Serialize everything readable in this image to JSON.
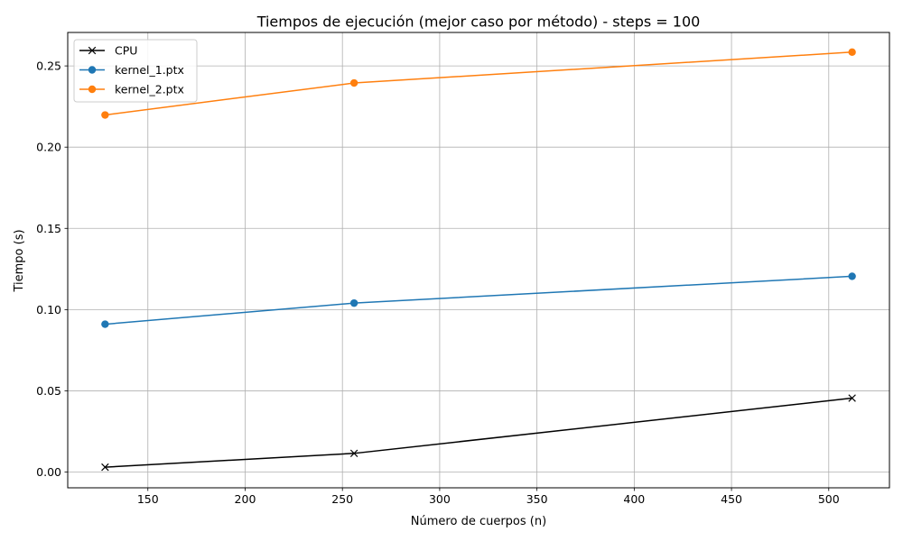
{
  "chart_data": {
    "type": "line",
    "title": "Tiempos de ejecución (mejor caso por método) - steps = 100",
    "xlabel": "Número de cuerpos (n)",
    "ylabel": "Tiempo (s)",
    "x": [
      128,
      256,
      512
    ],
    "xlim": [
      108.8,
      531.2
    ],
    "ylim": [
      -0.0097,
      0.2706
    ],
    "xticks": [
      150,
      200,
      250,
      300,
      350,
      400,
      450,
      500
    ],
    "yticks": [
      0.0,
      0.05,
      0.1,
      0.15,
      0.2,
      0.25
    ],
    "ytick_labels": [
      "0.00",
      "0.05",
      "0.10",
      "0.15",
      "0.20",
      "0.25"
    ],
    "grid": true,
    "legend_position": "top-left",
    "series": [
      {
        "name": "CPU",
        "values": [
          0.003,
          0.0115,
          0.0455
        ],
        "color": "#000000",
        "marker": "x"
      },
      {
        "name": "kernel_1.ptx",
        "values": [
          0.091,
          0.104,
          0.1205
        ],
        "color": "#1f77b4",
        "marker": "o"
      },
      {
        "name": "kernel_2.ptx",
        "values": [
          0.2198,
          0.2395,
          0.2585
        ],
        "color": "#ff7f0e",
        "marker": "o"
      }
    ]
  }
}
